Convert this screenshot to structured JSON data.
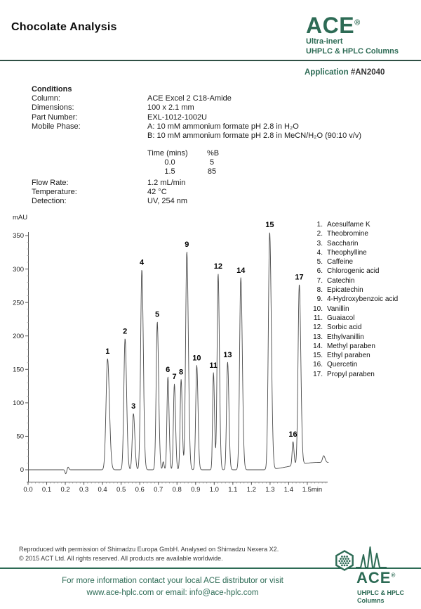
{
  "colors": {
    "brand_green": "#2d6b55",
    "rule_dark": "#2f4f44",
    "trace": "#4a4a4a"
  },
  "header": {
    "title": "Chocolate Analysis",
    "logo": {
      "brand": "ACE",
      "reg": "®",
      "tagline1": "Ultra-inert",
      "tagline2": "UHPLC & HPLC Columns"
    },
    "application_label": "Application",
    "application_number": "#AN2040"
  },
  "conditions": {
    "heading": "Conditions",
    "rows": [
      {
        "label": "Column:",
        "value": "ACE Excel 2 C18-Amide"
      },
      {
        "label": "Dimensions:",
        "value": "100 x 2.1 mm"
      },
      {
        "label": "Part Number:",
        "value": "EXL-1012-1002U"
      },
      {
        "label": "Mobile Phase:",
        "value": "A: 10 mM ammonium formate pH 2.8 in H₂O"
      },
      {
        "label": "",
        "value": "B: 10 mM ammonium formate pH 2.8 in MeCN/H₂O (90:10 v/v)"
      }
    ],
    "gradient": {
      "headers": [
        "Time (mins)",
        "%B"
      ],
      "rows": [
        [
          "0.0",
          "5"
        ],
        [
          "1.5",
          "85"
        ]
      ]
    },
    "rows2": [
      {
        "label": "Flow Rate:",
        "value": "1.2 mL/min"
      },
      {
        "label": "Temperature:",
        "value": "42 °C"
      },
      {
        "label": "Detection:",
        "value": "UV, 254 nm"
      }
    ]
  },
  "chart_data": {
    "type": "line",
    "title": "",
    "xlabel": "min",
    "ylabel": "mAU",
    "xlim": [
      0,
      1.62
    ],
    "ylim": [
      -20,
      370
    ],
    "x_ticks": [
      0.0,
      0.1,
      0.2,
      0.3,
      0.4,
      0.5,
      0.6,
      0.7,
      0.8,
      0.9,
      1.0,
      1.1,
      1.2,
      1.3,
      1.4,
      1.5
    ],
    "x_tick_labels": [
      "0.0",
      "0.1",
      "0.2",
      "0.3",
      "0.4",
      "0.5",
      "0.6",
      "0.7",
      "0.8",
      "0.9",
      "1.0",
      "1.1",
      "1.2",
      "1.3",
      "1.4",
      "1.5min"
    ],
    "y_ticks": [
      0,
      50,
      100,
      150,
      200,
      250,
      300,
      350
    ],
    "peaks": [
      {
        "n": 1,
        "name": "Acesulfame K",
        "rt_min": 0.427,
        "height_mau": 166,
        "sigma": 0.008
      },
      {
        "n": 2,
        "name": "Theobromine",
        "rt_min": 0.521,
        "height_mau": 196,
        "sigma": 0.0065
      },
      {
        "n": 3,
        "name": "Saccharin",
        "rt_min": 0.566,
        "height_mau": 84,
        "sigma": 0.006
      },
      {
        "n": 4,
        "name": "Theophylline",
        "rt_min": 0.611,
        "height_mau": 299,
        "sigma": 0.0065
      },
      {
        "n": 5,
        "name": "Caffeine",
        "rt_min": 0.694,
        "height_mau": 221,
        "sigma": 0.006
      },
      {
        "n": 6,
        "name": "Chlorogenic acid",
        "rt_min": 0.751,
        "height_mau": 139,
        "sigma": 0.005
      },
      {
        "n": 7,
        "name": "Catechin",
        "rt_min": 0.786,
        "height_mau": 128,
        "sigma": 0.005
      },
      {
        "n": 8,
        "name": "Epicatechin",
        "rt_min": 0.822,
        "height_mau": 135,
        "sigma": 0.005
      },
      {
        "n": 9,
        "name": "4-Hydroxybenzoic acid",
        "rt_min": 0.853,
        "height_mau": 326,
        "sigma": 0.0065
      },
      {
        "n": 10,
        "name": "Vanillin",
        "rt_min": 0.906,
        "height_mau": 156,
        "sigma": 0.0055
      },
      {
        "n": 11,
        "name": "Guaiacol",
        "rt_min": 0.996,
        "height_mau": 145,
        "sigma": 0.0045
      },
      {
        "n": 12,
        "name": "Sorbic acid",
        "rt_min": 1.021,
        "height_mau": 293,
        "sigma": 0.0055
      },
      {
        "n": 13,
        "name": "Ethylvanillin",
        "rt_min": 1.072,
        "height_mau": 161,
        "sigma": 0.0055
      },
      {
        "n": 14,
        "name": "Methyl paraben",
        "rt_min": 1.143,
        "height_mau": 287,
        "sigma": 0.0065
      },
      {
        "n": 15,
        "name": "Ethyl paraben",
        "rt_min": 1.298,
        "height_mau": 355,
        "sigma": 0.007
      },
      {
        "n": 16,
        "name": "Quercetin",
        "rt_min": 1.423,
        "height_mau": 42,
        "sigma": 0.0045
      },
      {
        "n": 17,
        "name": "Propyl paraben",
        "rt_min": 1.457,
        "height_mau": 277,
        "sigma": 0.0065
      }
    ],
    "minor_features": [
      {
        "t": 0.202,
        "amp": -6,
        "sigma": 0.0035
      },
      {
        "t": 0.215,
        "amp": 4,
        "sigma": 0.0035
      },
      {
        "t": 0.726,
        "amp": 12,
        "sigma": 0.0035
      },
      {
        "t": 1.588,
        "amp": 10,
        "sigma": 0.006
      }
    ],
    "baseline": {
      "rise_start": 1.26,
      "rise_span": 0.3,
      "rise_amp": 11
    }
  },
  "footer": {
    "credit1": "Reproduced with permission of Shimadzu Europa GmbH. Analysed on Shimadzu Nexera X2.",
    "credit2": "© 2015 ACT Ltd. All rights reserved. All products are available worldwide.",
    "contact1": "For more information contact your local ACE distributor or visit",
    "contact2": "www.ace-hplc.com or email: info@ace-hplc.com",
    "logo": {
      "brand": "ACE",
      "reg": "®",
      "tagline1": "UHPLC & HPLC",
      "tagline2": "Columns"
    }
  }
}
